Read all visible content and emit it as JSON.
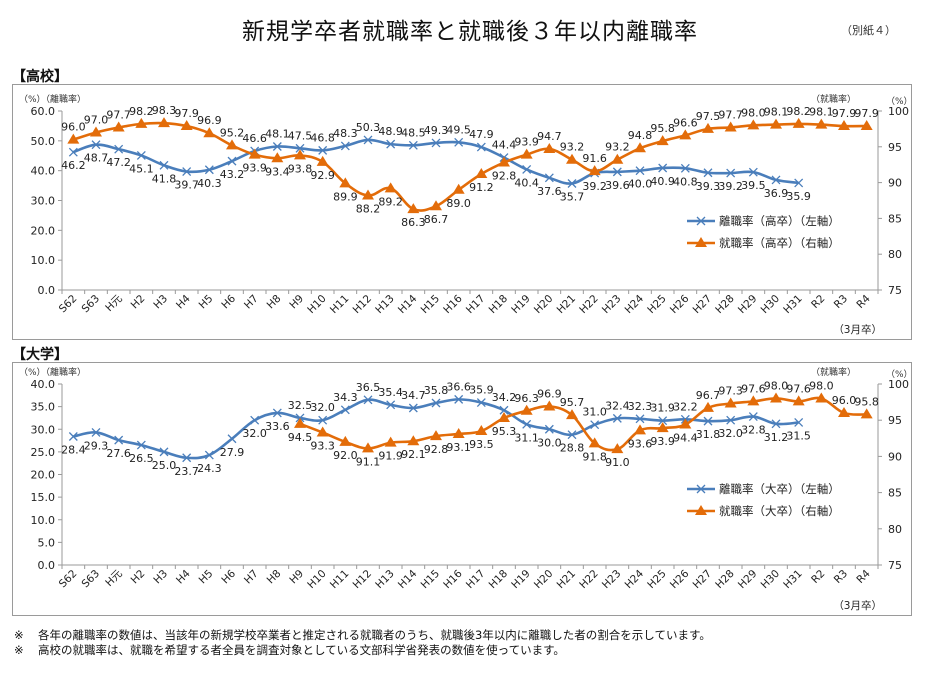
{
  "page": {
    "title": "新規学卒者就職率と就職後３年以内離職率",
    "annex": "（別紙４）",
    "notes": [
      {
        "mark": "※",
        "text": "各年の離職率の数値は、当該年の新規学校卒業者と推定される就職者のうち、就職後3年以内に離職した者の割合を示しています。"
      },
      {
        "mark": "※",
        "text": "高校の就職率は、就職を希望する者全員を調査対象としている文部科学省発表の数値を使っています。"
      }
    ]
  },
  "colors": {
    "separation": "#4a7ebb",
    "employment": "#e36c09",
    "axis": "#9a9a9a",
    "grid_text": "#222222"
  },
  "chart_data": [
    {
      "type": "line",
      "section_label": "【高校】",
      "left_axis_label": "（%）（離職率）",
      "right_axis_label": "（就職率）",
      "right_axis_unit": "（%）",
      "x_unit_note": "（3月卒）",
      "categories": [
        "S62",
        "S63",
        "H元",
        "H2",
        "H3",
        "H4",
        "H5",
        "H6",
        "H7",
        "H8",
        "H9",
        "H10",
        "H11",
        "H12",
        "H13",
        "H14",
        "H15",
        "H16",
        "H17",
        "H18",
        "H19",
        "H20",
        "H21",
        "H22",
        "H23",
        "H24",
        "H25",
        "H26",
        "H27",
        "H28",
        "H29",
        "H30",
        "H31",
        "R2",
        "R3",
        "R4"
      ],
      "y_left": {
        "min": 0,
        "max": 60,
        "step": 10,
        "ticks": [
          "0.0",
          "10.0",
          "20.0",
          "30.0",
          "40.0",
          "50.0",
          "60.0"
        ]
      },
      "y_right": {
        "min": 75,
        "max": 100,
        "step": 5,
        "ticks": [
          "75",
          "80",
          "85",
          "90",
          "95",
          "100"
        ]
      },
      "legend_position": "right-middle",
      "series": [
        {
          "name": "離職率（高卒）（左軸）",
          "axis": "left",
          "marker": "x",
          "color_key": "separation",
          "start_index": 0,
          "values": [
            46.2,
            48.7,
            47.2,
            45.1,
            41.8,
            39.7,
            40.3,
            43.2,
            46.6,
            48.1,
            47.5,
            46.8,
            48.3,
            50.3,
            48.9,
            48.5,
            49.3,
            49.5,
            47.9,
            44.4,
            40.4,
            37.6,
            35.7,
            39.2,
            39.6,
            40.0,
            40.9,
            40.8,
            39.3,
            39.2,
            39.5,
            36.9,
            35.9
          ],
          "labels": [
            "46.2",
            "48.7",
            "47.2",
            "45.1",
            "41.8",
            "39.7",
            "40.3",
            "43.2",
            "46.6",
            "48.1",
            "47.5",
            "46.8",
            "48.3",
            "50.3",
            "48.9",
            "48.5",
            "49.3",
            "49.5",
            "47.9",
            "44.4",
            "40.4",
            "37.6",
            "35.7",
            "39.2",
            "39.6",
            "40.0",
            "40.9",
            "40.8",
            "39.3",
            "39.2",
            "39.5",
            "36.9",
            "35.9"
          ]
        },
        {
          "name": "就職率（高卒）（右軸）",
          "axis": "right",
          "marker": "triangle",
          "color_key": "employment",
          "start_index": 0,
          "values": [
            96.0,
            97.0,
            97.7,
            98.2,
            98.3,
            97.9,
            96.9,
            95.2,
            93.9,
            93.4,
            93.8,
            92.9,
            89.9,
            88.2,
            89.2,
            86.3,
            86.7,
            89.0,
            91.2,
            92.8,
            93.9,
            94.7,
            93.2,
            91.6,
            93.2,
            94.8,
            95.8,
            96.6,
            97.5,
            97.7,
            98.0,
            98.1,
            98.2,
            98.1,
            97.9,
            97.9
          ],
          "labels": [
            "96.0",
            "97.0",
            "97.7",
            "98.2",
            "98.3",
            "97.9",
            "96.9",
            "95.2",
            "93.9",
            "93.4",
            "93.8",
            "92.9",
            "89.9",
            "88.2",
            "89.2",
            "86.3",
            "86.7",
            "89.0",
            "91.2",
            "92.8",
            "93.9",
            "94.7",
            "93.2",
            "91.6",
            "93.2",
            "94.8",
            "95.8",
            "96.6",
            "97.5",
            "97.7",
            "98.0",
            "98.1",
            "98.2",
            "98.1",
            "97.9",
            "97.9"
          ]
        }
      ]
    },
    {
      "type": "line",
      "section_label": "【大学】",
      "left_axis_label": "（%）（離職率）",
      "right_axis_label": "（就職率）",
      "right_axis_unit": "（%）",
      "x_unit_note": "（3月卒）",
      "categories": [
        "S62",
        "S63",
        "H元",
        "H2",
        "H3",
        "H4",
        "H5",
        "H6",
        "H7",
        "H8",
        "H9",
        "H10",
        "H11",
        "H12",
        "H13",
        "H14",
        "H15",
        "H16",
        "H17",
        "H18",
        "H19",
        "H20",
        "H21",
        "H22",
        "H23",
        "H24",
        "H25",
        "H26",
        "H27",
        "H28",
        "H29",
        "H30",
        "H31",
        "R2",
        "R3",
        "R4"
      ],
      "y_left": {
        "min": 0,
        "max": 40,
        "step": 5,
        "ticks": [
          "0.0",
          "5.0",
          "10.0",
          "15.0",
          "20.0",
          "25.0",
          "30.0",
          "35.0",
          "40.0"
        ]
      },
      "y_right": {
        "min": 75,
        "max": 100,
        "step": 5,
        "ticks": [
          "75",
          "80",
          "85",
          "90",
          "95",
          "100"
        ]
      },
      "legend_position": "right-middle",
      "series": [
        {
          "name": "離職率（大卒）（左軸）",
          "axis": "left",
          "marker": "x",
          "color_key": "separation",
          "start_index": 0,
          "values": [
            28.4,
            29.3,
            27.6,
            26.5,
            25.0,
            23.7,
            24.3,
            27.9,
            32.0,
            33.6,
            32.5,
            32.0,
            34.3,
            36.5,
            35.4,
            34.7,
            35.8,
            36.6,
            35.9,
            34.2,
            31.1,
            30.0,
            28.8,
            31.0,
            32.4,
            32.3,
            31.9,
            32.2,
            31.8,
            32.0,
            32.8,
            31.2,
            31.5
          ],
          "labels": [
            "28.4",
            "29.3",
            "27.6",
            "26.5",
            "25.0",
            "23.7",
            "24.3",
            "27.9",
            "32.0",
            "33.6",
            "32.5",
            "32.0",
            "34.3",
            "36.5",
            "35.4",
            "34.7",
            "35.8",
            "36.6",
            "35.9",
            "34.2",
            "31.1",
            "30.0",
            "28.8",
            "31.0",
            "32.4",
            "32.3",
            "31.9",
            "32.2",
            "31.8",
            "32.0",
            "32.8",
            "31.2",
            "31.5"
          ]
        },
        {
          "name": "就職率（大卒）（右軸）",
          "axis": "right",
          "marker": "triangle",
          "color_key": "employment",
          "start_index": 10,
          "values": [
            94.5,
            93.3,
            92.0,
            91.1,
            91.9,
            92.1,
            92.8,
            93.1,
            93.5,
            95.3,
            96.3,
            96.9,
            95.7,
            91.8,
            91.0,
            93.6,
            93.9,
            94.4,
            96.7,
            97.3,
            97.6,
            98.0,
            97.6,
            98.0,
            96.0,
            95.8
          ],
          "labels": [
            "94.5",
            "93.3",
            "92.0",
            "91.1",
            "91.9",
            "92.1",
            "92.8",
            "93.1",
            "93.5",
            "95.3",
            "96.3",
            "96.9",
            "95.7",
            "91.8",
            "91.0",
            "93.6",
            "93.9",
            "94.4",
            "96.7",
            "97.3",
            "97.6",
            "98.0",
            "97.6",
            "98.0",
            "96.0",
            "95.8"
          ]
        }
      ]
    }
  ]
}
